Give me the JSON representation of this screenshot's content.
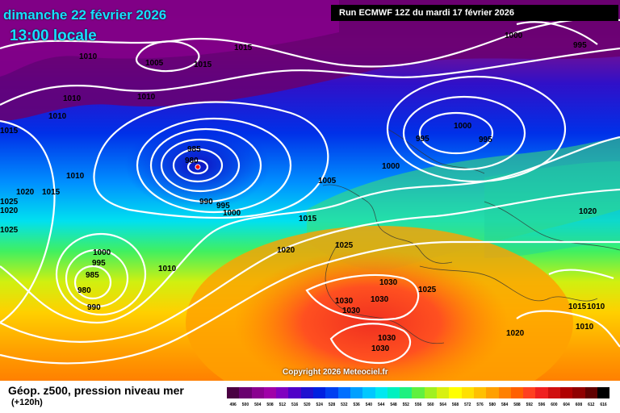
{
  "header": {
    "date": "dimanche 22 février 2026",
    "time": "13:00 locale",
    "run": "Run ECMWF 12Z du mardi 17 février 2026"
  },
  "copyright": "Copyright 2026 Meteociel.fr",
  "legend": {
    "title": "Géop. z500, pression niveau mer",
    "subtitle": "(+120h)",
    "values": [
      "496",
      "500",
      "504",
      "508",
      "512",
      "516",
      "520",
      "524",
      "528",
      "532",
      "536",
      "540",
      "544",
      "548",
      "552",
      "556",
      "560",
      "564",
      "568",
      "572",
      "576",
      "580",
      "584",
      "588",
      "592",
      "596",
      "600",
      "604",
      "608",
      "612",
      "616"
    ],
    "colors": [
      "#4a0042",
      "#6a0070",
      "#8a0090",
      "#a000a8",
      "#8000c0",
      "#5000c8",
      "#2010d0",
      "#0020e0",
      "#0040f0",
      "#0070ff",
      "#00a0ff",
      "#00c8ff",
      "#00e8f0",
      "#00f0c0",
      "#20f080",
      "#60f040",
      "#a0f020",
      "#d8f010",
      "#ffff00",
      "#ffe000",
      "#ffc000",
      "#ffa000",
      "#ff8000",
      "#ff6000",
      "#ff4020",
      "#f02020",
      "#d01010",
      "#b00000",
      "#900000",
      "#600000",
      "#000000"
    ]
  },
  "isobar_labels": [
    {
      "text": "1010"
    },
    {
      "text": "1005"
    },
    {
      "text": "1015"
    },
    {
      "text": "1015"
    },
    {
      "text": "1010"
    },
    {
      "text": "1010"
    },
    {
      "text": "1010"
    },
    {
      "text": "1015"
    },
    {
      "text": "1010"
    },
    {
      "text": "1020"
    },
    {
      "text": "1015"
    },
    {
      "text": "1025"
    },
    {
      "text": "1020"
    },
    {
      "text": "1025"
    },
    {
      "text": "985"
    },
    {
      "text": "980"
    },
    {
      "text": "990"
    },
    {
      "text": "995"
    },
    {
      "text": "1000"
    },
    {
      "text": "1005"
    },
    {
      "text": "1015"
    },
    {
      "text": "1000"
    },
    {
      "text": "995"
    },
    {
      "text": "1000"
    },
    {
      "text": "995"
    },
    {
      "text": "1000"
    },
    {
      "text": "995"
    },
    {
      "text": "1020"
    },
    {
      "text": "1000"
    },
    {
      "text": "995"
    },
    {
      "text": "985"
    },
    {
      "text": "980"
    },
    {
      "text": "990"
    },
    {
      "text": "1010"
    },
    {
      "text": "1020"
    },
    {
      "text": "1025"
    },
    {
      "text": "1030"
    },
    {
      "text": "1030"
    },
    {
      "text": "1030"
    },
    {
      "text": "1030"
    },
    {
      "text": "1025"
    },
    {
      "text": "1030"
    },
    {
      "text": "1030"
    },
    {
      "text": "1020"
    },
    {
      "text": "1015"
    },
    {
      "text": "1010"
    },
    {
      "text": "1010"
    },
    {
      "text": "1020"
    }
  ]
}
